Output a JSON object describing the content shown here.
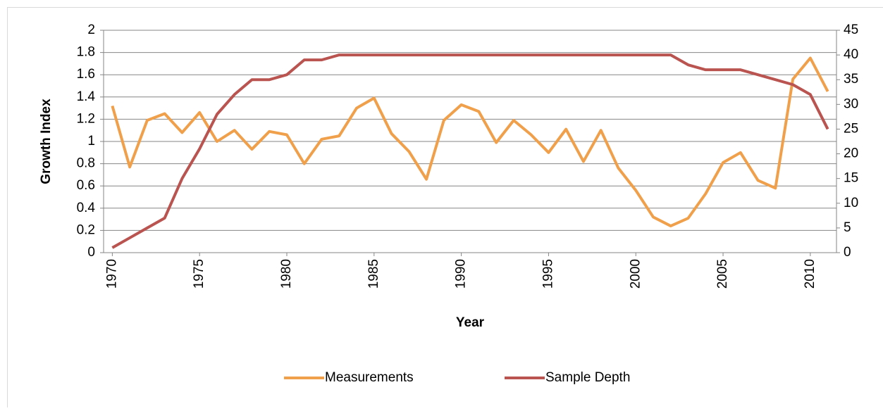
{
  "chart_data": {
    "type": "line",
    "xlabel": "Year",
    "ylabel": "Growth Index",
    "x": [
      1970,
      1971,
      1972,
      1973,
      1974,
      1975,
      1976,
      1977,
      1978,
      1979,
      1980,
      1981,
      1982,
      1983,
      1984,
      1985,
      1986,
      1987,
      1988,
      1989,
      1990,
      1991,
      1992,
      1993,
      1994,
      1995,
      1996,
      1997,
      1998,
      1999,
      2000,
      2001,
      2002,
      2003,
      2004,
      2005,
      2006,
      2007,
      2008,
      2009,
      2010,
      2011
    ],
    "xlim": [
      1969.5,
      2011.5
    ],
    "xticks": [
      1970,
      1975,
      1980,
      1985,
      1990,
      1995,
      2000,
      2005,
      2010
    ],
    "ylim": [
      0,
      2
    ],
    "yticks": [
      0,
      0.2,
      0.4,
      0.6,
      0.8,
      1,
      1.2,
      1.4,
      1.6,
      1.8,
      2
    ],
    "y2lim": [
      0,
      45
    ],
    "y2ticks": [
      0,
      5,
      10,
      15,
      20,
      25,
      30,
      35,
      40,
      45
    ],
    "grid": true,
    "legend": "bottom",
    "series": [
      {
        "name": "Measurements",
        "color": "#f0a04b",
        "values": [
          1.32,
          0.77,
          1.19,
          1.25,
          1.08,
          1.26,
          1.0,
          1.1,
          0.93,
          1.09,
          1.06,
          0.8,
          1.02,
          1.05,
          1.3,
          1.39,
          1.07,
          0.91,
          0.66,
          1.19,
          1.33,
          1.27,
          0.99,
          1.19,
          1.06,
          0.9,
          1.11,
          0.82,
          1.1,
          0.76,
          0.56,
          0.32,
          0.24,
          0.31,
          0.53,
          0.81,
          0.9,
          0.65,
          0.58,
          1.56,
          1.75,
          1.45
        ]
      },
      {
        "name": "Sample Depth",
        "color": "#b95450",
        "axis": "y2",
        "values": [
          1,
          3,
          5,
          7,
          15,
          21,
          28,
          32,
          35,
          35,
          36,
          39,
          39,
          40,
          40,
          40,
          40,
          40,
          40,
          40,
          40,
          40,
          40,
          40,
          40,
          40,
          40,
          40,
          40,
          40,
          40,
          40,
          40,
          38,
          37,
          37,
          37,
          36,
          35,
          34,
          32,
          25
        ]
      }
    ]
  }
}
